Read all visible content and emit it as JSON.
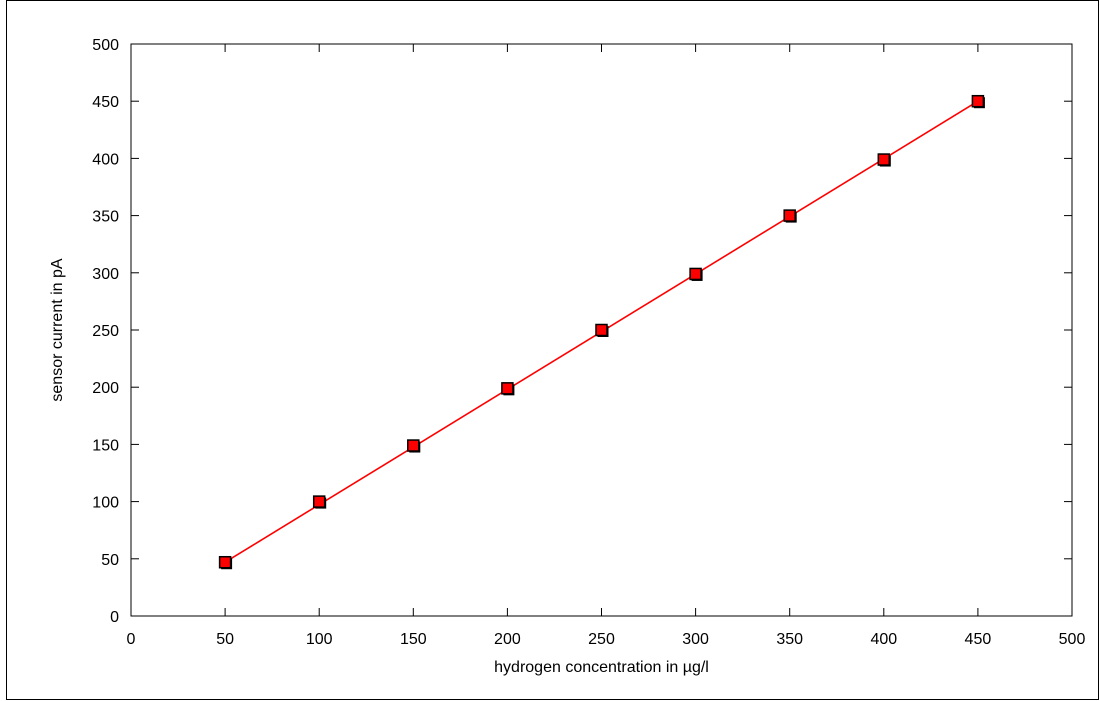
{
  "chart_data": {
    "type": "scatter",
    "title": "",
    "xlabel": "hydrogen concentration in µg/l",
    "ylabel": "sensor current in pA",
    "xlim": [
      0,
      500
    ],
    "ylim": [
      0,
      500
    ],
    "x_ticks": [
      0,
      50,
      100,
      150,
      200,
      250,
      300,
      350,
      400,
      450,
      500
    ],
    "y_ticks": [
      0,
      50,
      100,
      150,
      200,
      250,
      300,
      350,
      400,
      450,
      500
    ],
    "grid": false,
    "legend": "none",
    "series": [
      {
        "x": [
          50,
          100,
          150,
          200,
          250,
          300,
          350,
          400,
          450
        ],
        "y": [
          47,
          100,
          149,
          199,
          250,
          299,
          350,
          399,
          450
        ],
        "marker": "square",
        "marker_color": "#ff0000",
        "marker_edge_color": "#000000",
        "line_color": "#ff0000",
        "fit_line": {
          "x": [
            50,
            450
          ],
          "y": [
            47,
            450
          ]
        }
      }
    ]
  }
}
